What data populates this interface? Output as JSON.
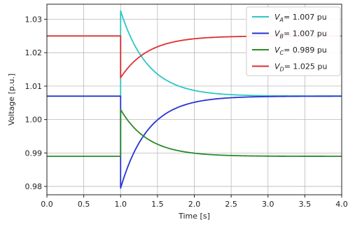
{
  "chart_data": {
    "type": "line",
    "xlabel": "Time [s]",
    "ylabel": "Voltage [p.u.]",
    "xlim": [
      0.0,
      4.0
    ],
    "ylim": [
      0.9775,
      1.0345
    ],
    "x_ticks": [
      "0.0",
      "0.5",
      "1.0",
      "1.5",
      "2.0",
      "2.5",
      "3.0",
      "3.5",
      "4.0"
    ],
    "y_ticks": [
      "0.98",
      "0.99",
      "1.00",
      "1.01",
      "1.02",
      "1.03"
    ],
    "grid": true,
    "legend_position": "top-right",
    "disturbance_time": 1.0,
    "series": [
      {
        "name": "V_A",
        "legend_main": "V",
        "legend_sub": "A",
        "legend_value": "= 1.007 pu",
        "color": "#2ec6c6",
        "pre_value": 1.007,
        "peak_value": 1.0325,
        "final_value": 1.007,
        "tau": 0.37
      },
      {
        "name": "V_B",
        "legend_main": "V",
        "legend_sub": "B",
        "legend_value": "= 1.007 pu",
        "color": "#2433d6",
        "pre_value": 1.007,
        "peak_value": 0.9795,
        "final_value": 1.007,
        "tau": 0.37
      },
      {
        "name": "V_C",
        "legend_main": "V",
        "legend_sub": "C",
        "legend_value": "= 0.989 pu",
        "color": "#2b8a2b",
        "pre_value": 0.989,
        "peak_value": 1.003,
        "final_value": 0.989,
        "tau": 0.37
      },
      {
        "name": "V_D",
        "legend_main": "V",
        "legend_sub": "D",
        "legend_value": "= 1.025 pu",
        "color": "#e03030",
        "pre_value": 1.025,
        "peak_value": 1.0125,
        "final_value": 1.025,
        "tau": 0.37
      }
    ]
  }
}
